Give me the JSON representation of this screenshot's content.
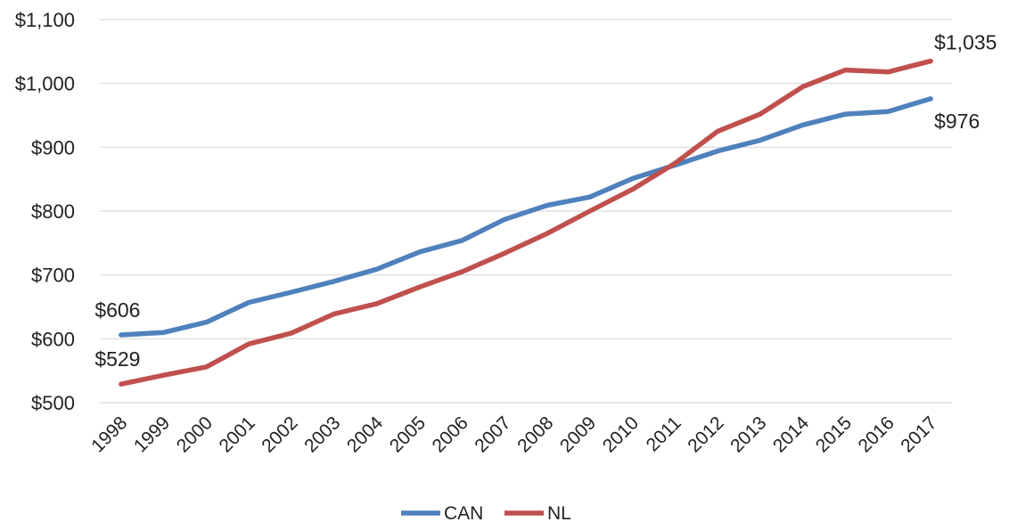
{
  "chart_data": {
    "type": "line",
    "title": "",
    "xlabel": "",
    "ylabel": "",
    "categories": [
      "1998",
      "1999",
      "2000",
      "2001",
      "2002",
      "2003",
      "2004",
      "2005",
      "2006",
      "2007",
      "2008",
      "2009",
      "2010",
      "2011",
      "2012",
      "2013",
      "2014",
      "2015",
      "2016",
      "2017"
    ],
    "ylim": [
      500,
      1100
    ],
    "yticks": [
      500,
      600,
      700,
      800,
      900,
      1000,
      1100
    ],
    "ytick_labels": [
      "$500",
      "$600",
      "$700",
      "$800",
      "$900",
      "$1,000",
      "$1,100"
    ],
    "grid": true,
    "legend_position": "bottom",
    "series": [
      {
        "name": "CAN",
        "color": "#4f81bd",
        "values": [
          606,
          610,
          626,
          657,
          673,
          690,
          709,
          736,
          754,
          787,
          809,
          822,
          851,
          872,
          894,
          911,
          935,
          952,
          956,
          976
        ]
      },
      {
        "name": "NL",
        "color": "#c0504d",
        "values": [
          529,
          543,
          556,
          592,
          609,
          639,
          655,
          681,
          705,
          734,
          765,
          800,
          834,
          875,
          925,
          952,
          995,
          1021,
          1018,
          1035
        ]
      }
    ],
    "data_labels": [
      {
        "series": 0,
        "index": 0,
        "text": "$606"
      },
      {
        "series": 1,
        "index": 0,
        "text": "$529"
      },
      {
        "series": 1,
        "index": 19,
        "text": "$1,035"
      },
      {
        "series": 0,
        "index": 19,
        "text": "$976"
      }
    ]
  }
}
